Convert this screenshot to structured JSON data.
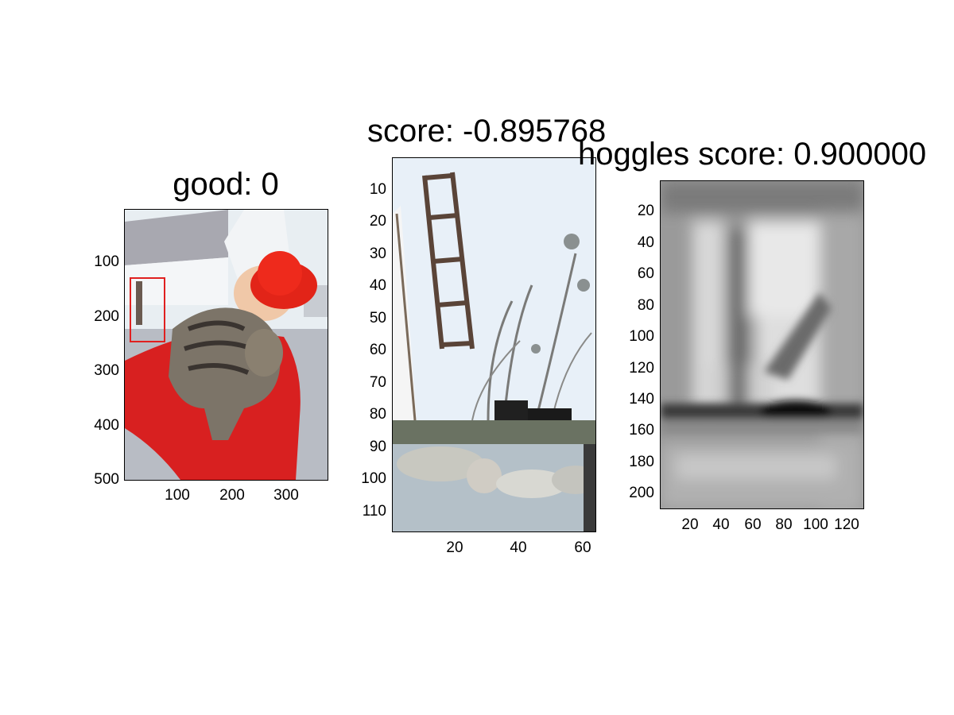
{
  "panels": [
    {
      "title": "good: 0",
      "image": "photo-woman-in-red-hat-holding-tabby-cat",
      "y_ticks": [
        "100",
        "200",
        "300",
        "400",
        "500"
      ],
      "x_ticks": [
        "100",
        "200",
        "300"
      ],
      "x_range": [
        1,
        375
      ],
      "y_range": [
        1,
        500
      ],
      "y_tick_values": [
        100,
        200,
        300,
        400,
        500
      ],
      "x_tick_values": [
        100,
        200,
        300
      ],
      "box_color": "#e02020"
    },
    {
      "title": "score: -0.895768",
      "image": "crop-white-wall-trellis-shrub",
      "y_ticks": [
        "10",
        "20",
        "30",
        "40",
        "50",
        "60",
        "70",
        "80",
        "90",
        "100",
        "110"
      ],
      "x_ticks": [
        "20",
        "40",
        "60"
      ],
      "x_range": [
        1,
        63
      ],
      "y_range": [
        1,
        117
      ],
      "y_tick_values": [
        10,
        20,
        30,
        40,
        50,
        60,
        70,
        80,
        90,
        100,
        110
      ],
      "x_tick_values": [
        20,
        40,
        60
      ]
    },
    {
      "title": "hoggles score: 0.900000",
      "image": "grayscale-hog-inversion",
      "y_ticks": [
        "20",
        "40",
        "60",
        "80",
        "100",
        "120",
        "140",
        "160",
        "180",
        "200"
      ],
      "x_ticks": [
        "20",
        "40",
        "60",
        "80",
        "100",
        "120"
      ],
      "x_range": [
        1,
        128
      ],
      "y_range": [
        1,
        210
      ],
      "y_tick_values": [
        20,
        40,
        60,
        80,
        100,
        120,
        140,
        160,
        180,
        200
      ],
      "x_tick_values": [
        20,
        40,
        60,
        80,
        100,
        120
      ]
    }
  ]
}
